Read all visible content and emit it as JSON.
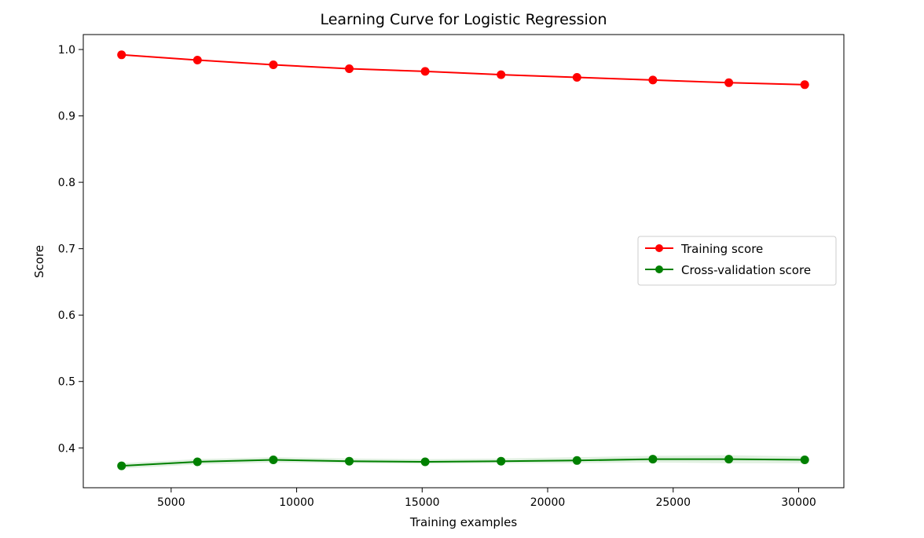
{
  "chart_data": {
    "type": "line",
    "title": "Learning Curve for Logistic Regression",
    "xlabel": "Training examples",
    "ylabel": "Score",
    "xlim": [
      1500,
      31800
    ],
    "ylim": [
      0.34,
      1.0225
    ],
    "x_ticks": [
      5000,
      10000,
      15000,
      20000,
      25000,
      30000
    ],
    "y_ticks": [
      0.4,
      0.5,
      0.6,
      0.7,
      0.8,
      0.9,
      1.0
    ],
    "x_tick_labels": [
      "5000",
      "10000",
      "15000",
      "20000",
      "25000",
      "30000"
    ],
    "y_tick_labels": [
      "0.4",
      "0.5",
      "0.6",
      "0.7",
      "0.8",
      "0.9",
      "1.0"
    ],
    "grid": false,
    "legend_position": "center-right",
    "x": [
      3024,
      6048,
      9072,
      12096,
      15120,
      18144,
      21168,
      24192,
      27216,
      30240
    ],
    "series": [
      {
        "name": "Training score",
        "color": "#ff0000",
        "marker": "circle",
        "values": [
          0.992,
          0.984,
          0.977,
          0.971,
          0.967,
          0.962,
          0.958,
          0.954,
          0.95,
          0.947
        ],
        "band_lower": [
          0.991,
          0.983,
          0.976,
          0.97,
          0.966,
          0.961,
          0.957,
          0.953,
          0.949,
          0.946
        ],
        "band_upper": [
          0.993,
          0.985,
          0.978,
          0.972,
          0.968,
          0.963,
          0.959,
          0.955,
          0.951,
          0.948
        ],
        "band_color": "#ff0000"
      },
      {
        "name": "Cross-validation score",
        "color": "#008000",
        "marker": "circle",
        "values": [
          0.373,
          0.379,
          0.382,
          0.38,
          0.379,
          0.38,
          0.381,
          0.383,
          0.383,
          0.382
        ],
        "band_lower": [
          0.369,
          0.375,
          0.378,
          0.377,
          0.376,
          0.377,
          0.377,
          0.378,
          0.377,
          0.377
        ],
        "band_upper": [
          0.377,
          0.383,
          0.386,
          0.384,
          0.383,
          0.384,
          0.386,
          0.388,
          0.389,
          0.387
        ],
        "band_color": "#008000"
      }
    ]
  }
}
